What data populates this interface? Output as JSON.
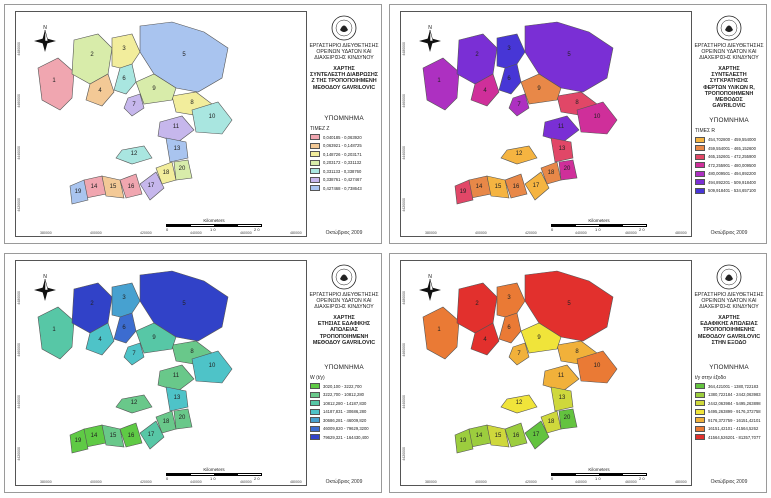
{
  "common": {
    "lab_lines": [
      "ΕΡΓΑΣΤΗΡΙΟ ΔΙΕΥΘΕΤΗΣΗΣ",
      "ΟΡΕΙΝΩΝ ΥΔΑΤΩΝ ΚΑΙ",
      "ΔΙΑΧΕΙΡΙΣΗΣ ΚΙΝΔΥΝΟΥ"
    ],
    "legend_heading": "ΥΠΟΜΝΗΜΑ",
    "date_label": "Οκτώβριος 2009",
    "scale_caption": "Kilometers",
    "scale_ticks": [
      "0",
      "1 0",
      "2 0"
    ],
    "north_letter": "N",
    "axis_x_ticks": [
      "380000",
      "400000",
      "420000",
      "440000",
      "460000",
      "480000"
    ],
    "axis_y_ticks": [
      "4480000",
      "4460000",
      "4440000",
      "4420000"
    ]
  },
  "panels": [
    {
      "title_lines": [
        "ΧΑΡΤΗΣ",
        "ΣΥΝΤΕΛΕΣΤΗ ΔΙΑΒΡΩΣΗΣ",
        "Z ΤΗΣ ΤΡΟΠΟΠΟΙΗΜΕΝΗ",
        "ΜΕΘΟΔΟΥ GAVRILOVIC"
      ],
      "legend_units": "TIMEZ Z",
      "legend": [
        {
          "range": "0,040185 - 0,063920",
          "color": "#f0a6b0"
        },
        {
          "range": "0,063921 - 0,148725",
          "color": "#f3c996"
        },
        {
          "range": "0,148726 - 0,203171",
          "color": "#f2ed9c"
        },
        {
          "range": "0,203172 - 0,331132",
          "color": "#d8ecaa"
        },
        {
          "range": "0,331133 - 0,338760",
          "color": "#a9e6e0"
        },
        {
          "range": "0,338761 - 0,427467",
          "color": "#c6b7ec"
        },
        {
          "range": "0,427468 - 0,738643",
          "color": "#a9c4ef"
        }
      ],
      "labels": [
        "1",
        "2",
        "3",
        "4",
        "5",
        "6",
        "7",
        "8",
        "9",
        "10",
        "11",
        "12",
        "13",
        "14",
        "15",
        "16",
        "17",
        "18",
        "19",
        "20"
      ]
    },
    {
      "title_lines": [
        "ΧΑΡΤΗΣ",
        "ΣΥΝΤΕΛΕΣΤΗ",
        "ΣΥΓΚΡΑΤΗΣΗΣ",
        "ΦΕΡΤΩΝ ΥΛΙΚΩΝ R,",
        "ΤΡΟΠΟΠΟΙΗΜΕΝΗ",
        "ΜΕΘΟΔΟΣ",
        "GAVRILOVIC"
      ],
      "legend_units": "TIMEΣ R",
      "legend": [
        {
          "range": "454,702800 - 459,554000",
          "color": "#f5b441"
        },
        {
          "range": "459,554001 - 465,152600",
          "color": "#e88848"
        },
        {
          "range": "465,152601 - 472,255900",
          "color": "#e14767"
        },
        {
          "range": "472,255901 - 480,009500",
          "color": "#cf2f9a"
        },
        {
          "range": "480,009501 - 494,892200",
          "color": "#ad30c1"
        },
        {
          "range": "494,892201 - 509,918400",
          "color": "#7a2fd5"
        },
        {
          "range": "509,918401 - 534,657100",
          "color": "#4736d6"
        }
      ],
      "labels": [
        "1",
        "2",
        "3",
        "4",
        "5",
        "6",
        "7",
        "8",
        "9",
        "10",
        "11",
        "12",
        "13",
        "14",
        "15",
        "16",
        "17",
        "18",
        "19",
        "20"
      ]
    },
    {
      "title_lines": [
        "ΧΑΡΤΗΣ",
        "ΕΤΗΣΙΑΣ ΕΔΑΦΙΚΗΣ",
        "ΑΠΩΛΕΙΑΣ",
        "ΤΡΟΠΟΠΟΙΗΜΕΝΗ",
        "ΜΕΘΟΔΟΥ GAVRILOVIC"
      ],
      "legend_units": "W (t/y)",
      "legend": [
        {
          "range": "3020,100 - 3222,700",
          "color": "#5fca45"
        },
        {
          "range": "3222,700 - 10812,280",
          "color": "#69c88a"
        },
        {
          "range": "10812,280 - 14187,830",
          "color": "#57c7a6"
        },
        {
          "range": "14187,831 - 30686,280",
          "color": "#4ec3c8"
        },
        {
          "range": "30686,281 - 46009,820",
          "color": "#47a1d0"
        },
        {
          "range": "46009,820 - 79629,3200",
          "color": "#3c6cd0"
        },
        {
          "range": "79629,321 - 164430,400",
          "color": "#3142c8"
        }
      ],
      "labels": [
        "1",
        "2",
        "3",
        "4",
        "5",
        "6",
        "7",
        "8",
        "9",
        "10",
        "11",
        "12",
        "13",
        "14",
        "15",
        "16",
        "17",
        "18",
        "19",
        "20"
      ]
    },
    {
      "title_lines": [
        "ΧΑΡΤΗΣ",
        "ΕΔΑΦΙΚΗΣ ΑΠΩΛΕΙΑΣ",
        "ΤΡΟΠΟΠΟΙΗΜΕΝΗΣ",
        "ΜΕΘΟΔΟΥ GAVRILOVIC",
        "ΣΤΗΝ ΕΞΟΔΟ"
      ],
      "legend_units": "t/y  στην έξοδο",
      "legend": [
        {
          "range": "364,421001 - 1380,722183",
          "color": "#63c33f"
        },
        {
          "range": "1380,722184 - 2442,063983",
          "color": "#9ccd3e"
        },
        {
          "range": "2442,063984 - 5495,263898",
          "color": "#cfd83c"
        },
        {
          "range": "5495,263899 - 9176,372758",
          "color": "#f0e43a"
        },
        {
          "range": "9176,372759 - 16151,42101",
          "color": "#f1b13a"
        },
        {
          "range": "16151,42101 - 41564,5262",
          "color": "#ea7a35"
        },
        {
          "range": "41564,526201 - 81357,7077",
          "color": "#e2302d"
        }
      ],
      "labels": [
        "1",
        "2",
        "3",
        "4",
        "5",
        "6",
        "7",
        "8",
        "9",
        "10",
        "11",
        "12",
        "13",
        "14",
        "15",
        "16",
        "17",
        "18",
        "19",
        "20"
      ]
    }
  ],
  "basin_classes": [
    [
      0,
      3,
      2,
      1,
      6,
      4,
      5,
      2,
      3,
      4,
      5,
      4,
      6,
      0,
      1,
      0,
      5,
      2,
      6,
      3
    ],
    [
      4,
      5,
      6,
      3,
      5,
      6,
      4,
      2,
      1,
      3,
      5,
      0,
      2,
      1,
      0,
      1,
      0,
      1,
      2,
      3
    ],
    [
      2,
      6,
      4,
      3,
      6,
      5,
      3,
      1,
      2,
      3,
      1,
      1,
      3,
      0,
      1,
      0,
      2,
      1,
      0,
      1
    ],
    [
      5,
      6,
      5,
      6,
      6,
      5,
      4,
      4,
      3,
      5,
      4,
      3,
      2,
      1,
      2,
      1,
      0,
      2,
      1,
      0
    ]
  ]
}
